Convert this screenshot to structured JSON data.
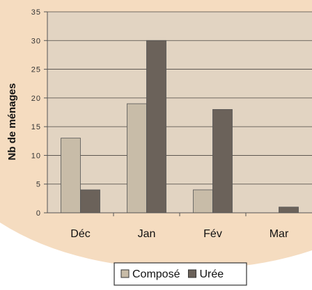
{
  "chart_data": {
    "type": "bar",
    "title": "",
    "xlabel": "",
    "ylabel": "Nb de ménages",
    "ylim": [
      0,
      35
    ],
    "yticks": [
      0,
      5,
      10,
      15,
      20,
      25,
      30,
      35
    ],
    "grid": true,
    "legend_position": "bottom",
    "categories": [
      "Déc",
      "Jan",
      "Fév",
      "Mar"
    ],
    "series": [
      {
        "name": "Composé",
        "color": "#c8bca8",
        "values": [
          13,
          19,
          4,
          0
        ]
      },
      {
        "name": "Urée",
        "color": "#6b625a",
        "values": [
          4,
          30,
          18,
          1
        ]
      }
    ],
    "colors": {
      "background_blob": "#f5dcc0",
      "plot_area": "#e2d4c2",
      "gridline": "#4a4540"
    }
  }
}
